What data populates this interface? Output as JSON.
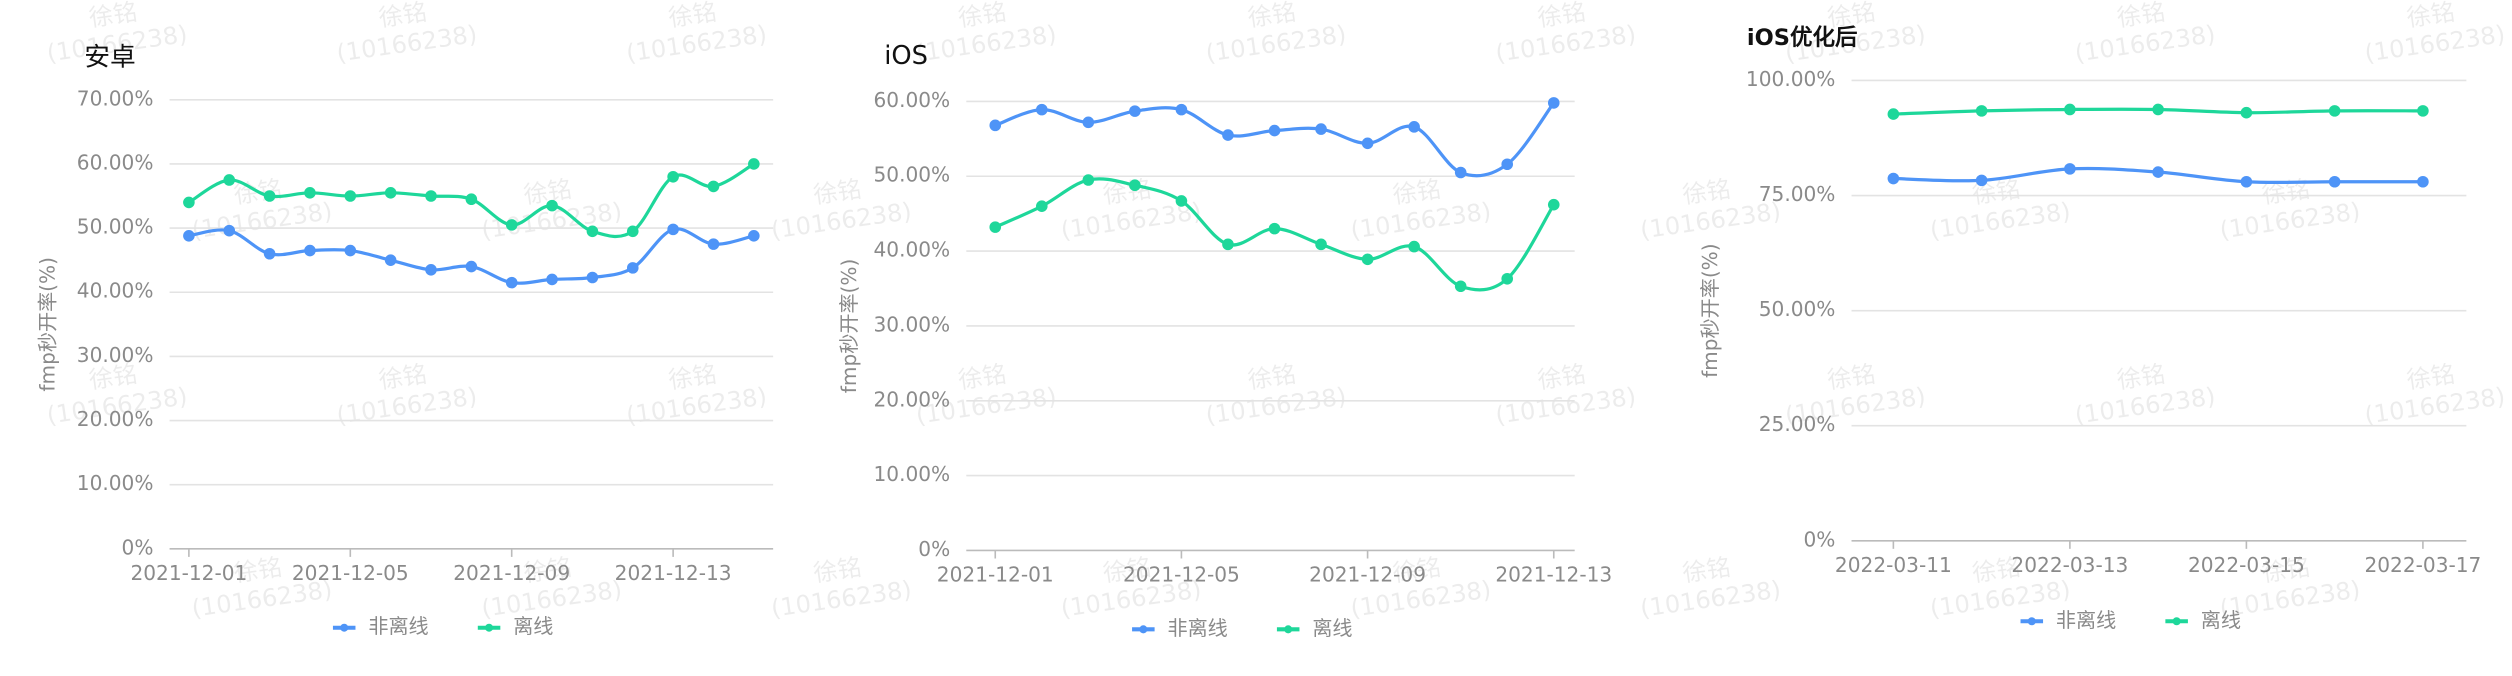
{
  "watermark": {
    "name": "徐铭",
    "id": "(10166238)"
  },
  "chart_data": [
    {
      "type": "line",
      "title": "安卓",
      "y_label": "fmp秒开率(%)",
      "categories": [
        "2021-12-01",
        null,
        null,
        null,
        "2021-12-05",
        null,
        null,
        null,
        "2021-12-09",
        null,
        null,
        null,
        "2021-12-13",
        null,
        null
      ],
      "series": [
        {
          "name": "非离线",
          "color": "#4e94f7",
          "values": [
            48.8,
            49.6,
            46.0,
            46.5,
            46.5,
            45.0,
            43.5,
            44.0,
            41.5,
            42.0,
            42.3,
            43.8,
            49.8,
            47.5,
            48.8
          ]
        },
        {
          "name": "离线",
          "color": "#1ed79a",
          "values": [
            54.0,
            57.5,
            55.0,
            55.5,
            55.0,
            55.5,
            55.0,
            54.5,
            50.5,
            53.5,
            49.5,
            49.5,
            58.0,
            56.5,
            60.0
          ]
        }
      ],
      "ylim": [
        0,
        70
      ],
      "yticks": [
        {
          "value": 0,
          "label": "0%"
        },
        {
          "value": 10,
          "label": "10.00%"
        },
        {
          "value": 20,
          "label": "20.00%"
        },
        {
          "value": 30,
          "label": "30.00%"
        },
        {
          "value": 40,
          "label": "40.00%"
        },
        {
          "value": 50,
          "label": "50.00%"
        },
        {
          "value": 60,
          "label": "60.00%"
        },
        {
          "value": 70,
          "label": "70.00%"
        }
      ],
      "grid": true
    },
    {
      "type": "line",
      "title": "iOS",
      "y_label": "fmp秒开率(%)",
      "categories": [
        "2021-12-01",
        null,
        null,
        null,
        "2021-12-05",
        null,
        null,
        null,
        "2021-12-09",
        null,
        null,
        null,
        "2021-12-13"
      ],
      "series": [
        {
          "name": "非离线",
          "color": "#4e94f7",
          "values": [
            56.8,
            58.9,
            57.2,
            58.7,
            58.9,
            55.5,
            56.1,
            56.3,
            54.4,
            56.6,
            50.5,
            51.6,
            59.8
          ]
        },
        {
          "name": "离线",
          "color": "#1ed79a",
          "values": [
            43.2,
            46.0,
            49.5,
            48.8,
            46.7,
            40.9,
            43.0,
            40.9,
            38.9,
            40.6,
            35.3,
            36.3,
            46.2
          ]
        }
      ],
      "ylim": [
        0,
        60
      ],
      "yticks": [
        {
          "value": 0,
          "label": "0%"
        },
        {
          "value": 10,
          "label": "10.00%"
        },
        {
          "value": 20,
          "label": "20.00%"
        },
        {
          "value": 30,
          "label": "30.00%"
        },
        {
          "value": 40,
          "label": "40.00%"
        },
        {
          "value": 50,
          "label": "50.00%"
        },
        {
          "value": 60,
          "label": "60.00%"
        }
      ],
      "grid": true
    },
    {
      "type": "line",
      "title": "iOS优化后",
      "y_label": "fmp秒开率(%)",
      "categories": [
        "2022-03-11",
        null,
        "2022-03-13",
        null,
        "2022-03-15",
        null,
        "2022-03-17"
      ],
      "series": [
        {
          "name": "非离线",
          "color": "#4e94f7",
          "values": [
            78.7,
            78.3,
            80.8,
            80.1,
            78.0,
            78.0,
            78.0
          ]
        },
        {
          "name": "离线",
          "color": "#1ed79a",
          "values": [
            92.7,
            93.4,
            93.7,
            93.7,
            93.0,
            93.4,
            93.4
          ]
        }
      ],
      "ylim": [
        0,
        100
      ],
      "yticks": [
        {
          "value": 0,
          "label": "0%"
        },
        {
          "value": 25,
          "label": "25.00%"
        },
        {
          "value": 50,
          "label": "50.00%"
        },
        {
          "value": 75,
          "label": "75.00%"
        },
        {
          "value": 100,
          "label": "100.00%"
        }
      ],
      "grid": true
    }
  ]
}
